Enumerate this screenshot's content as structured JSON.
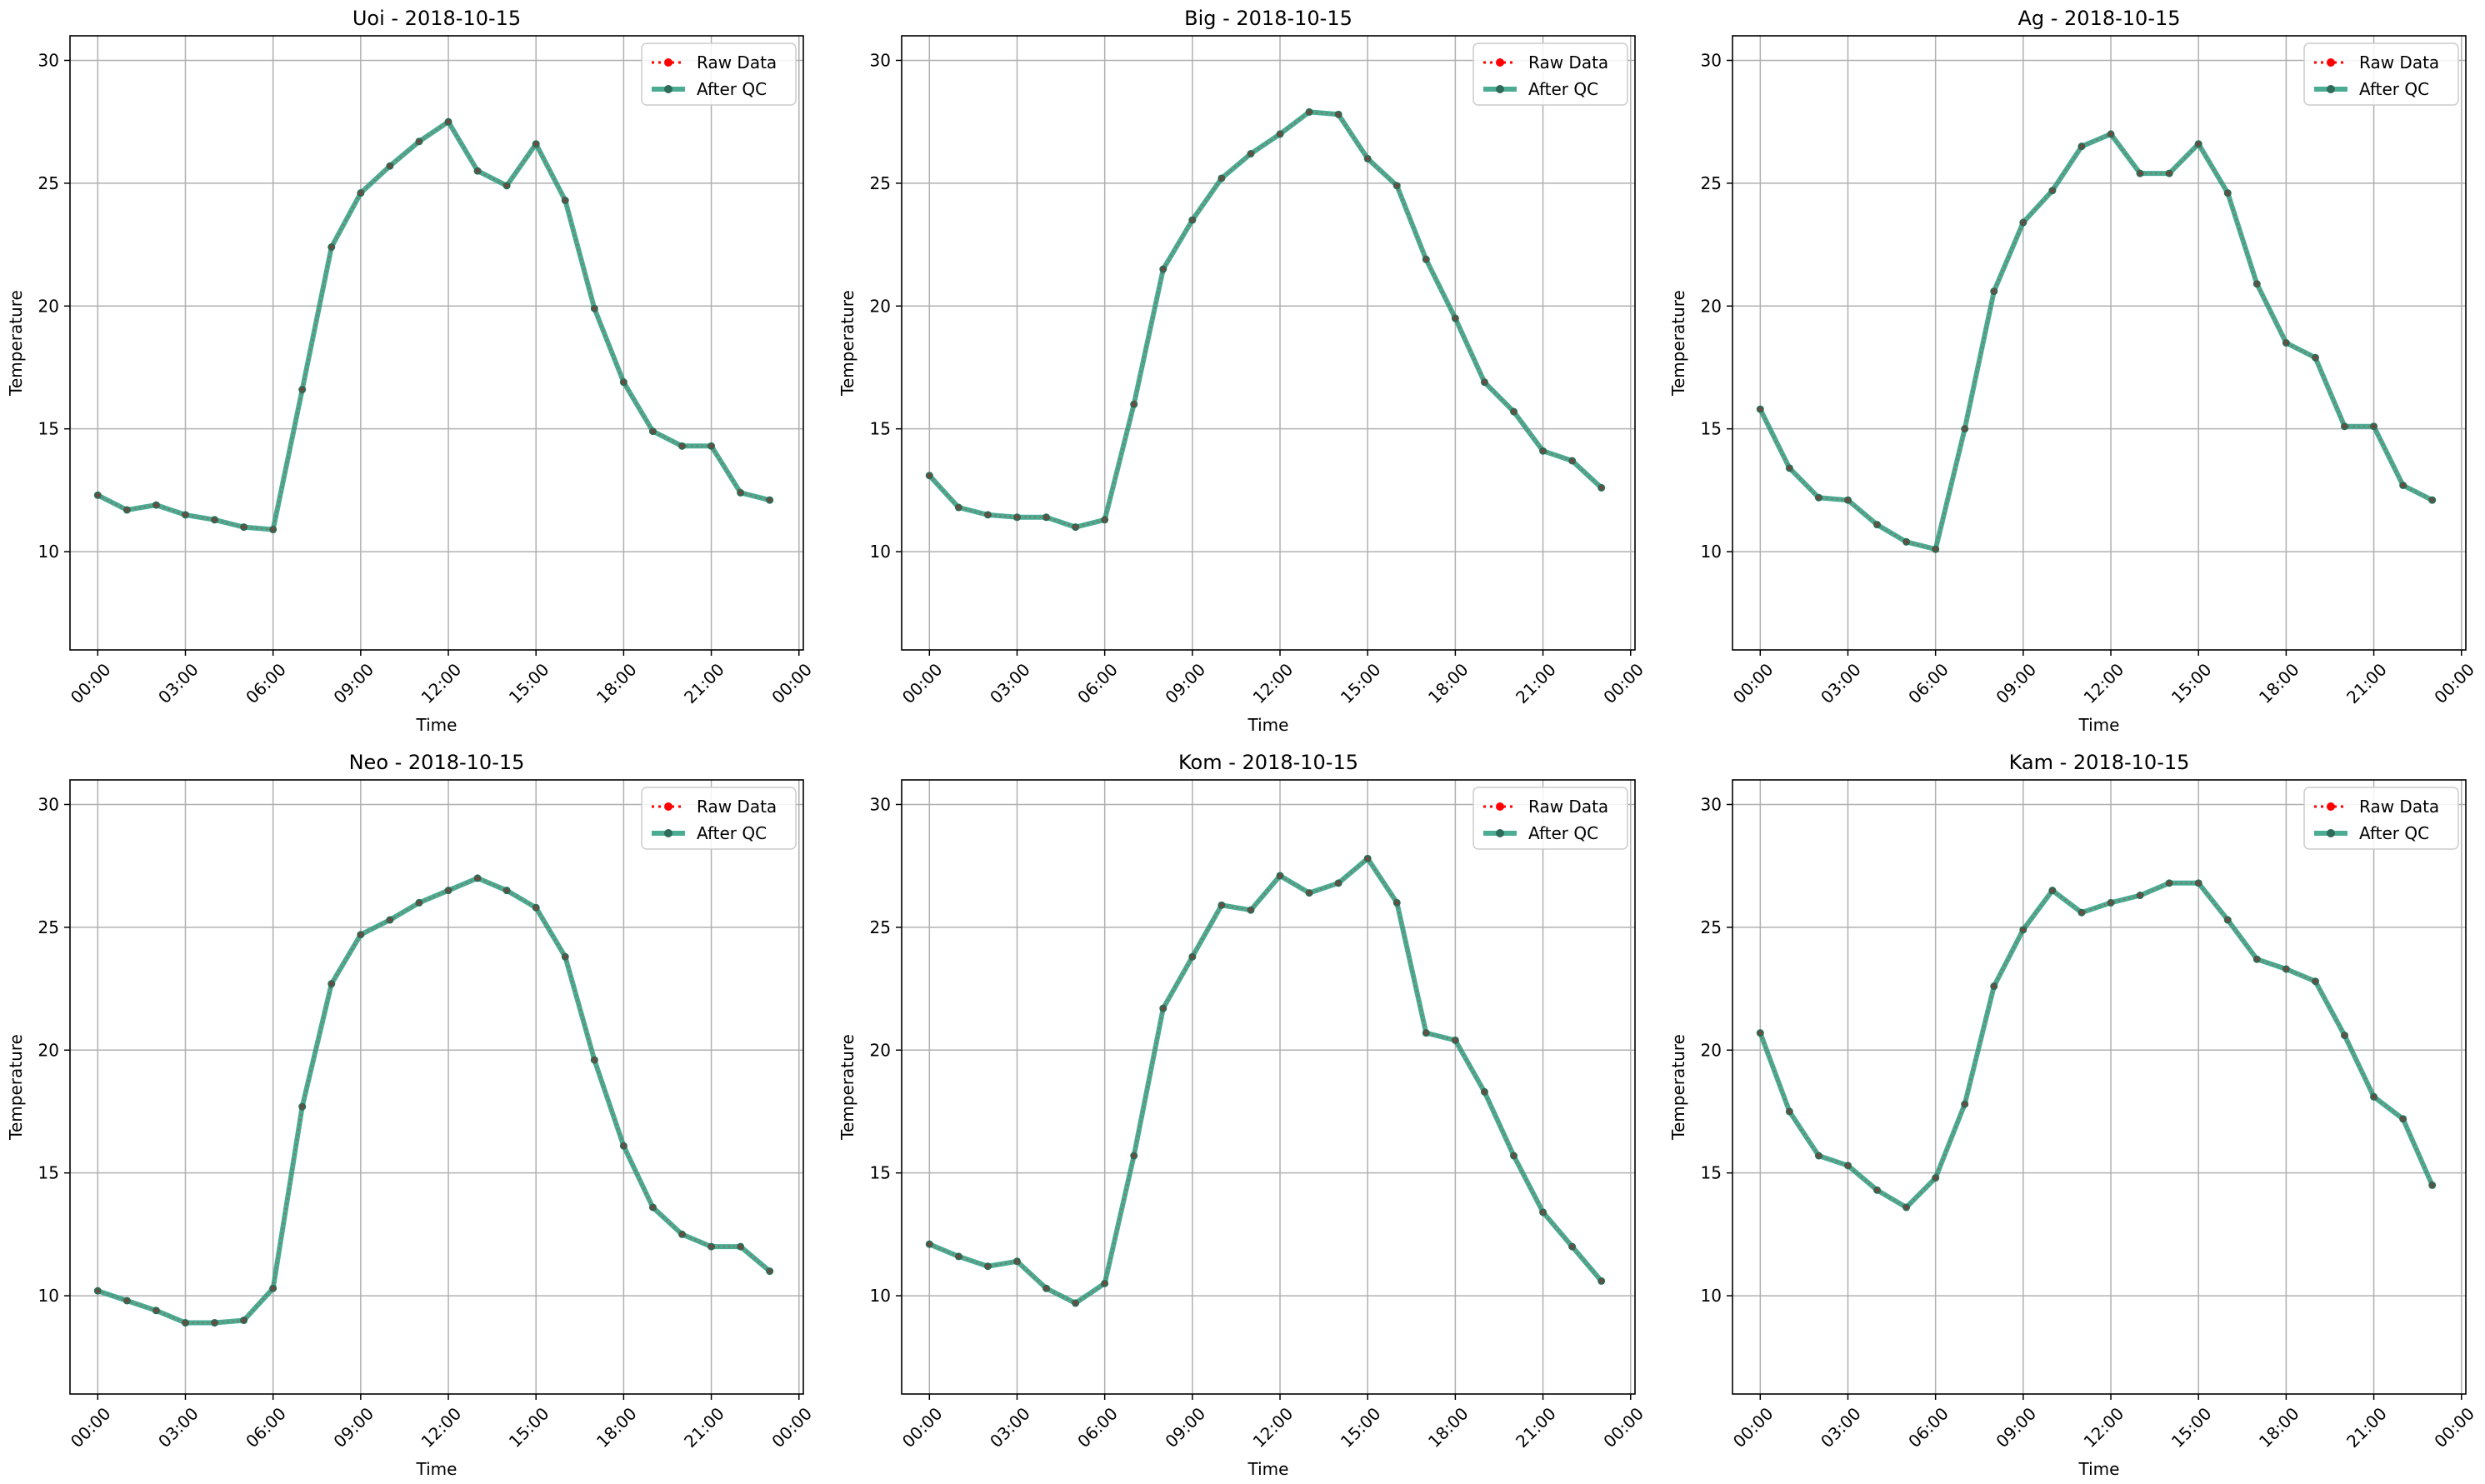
{
  "figure": {
    "colors": {
      "raw": "#ff0000",
      "qc": "#2a9d80",
      "qc_marker": "#2e6b58",
      "grid": "#b0b0b0",
      "axis": "#000000"
    },
    "legend_position": "upper-right",
    "grid": true
  },
  "chart_data": [
    {
      "type": "line",
      "title": "Uoi - 2018-10-15",
      "xlabel": "Time",
      "ylabel": "Temperature",
      "xlim": [
        -0.95,
        24.15
      ],
      "ylim": [
        6.0,
        31.0
      ],
      "xtick_labels": [
        "00:00",
        "03:00",
        "06:00",
        "09:00",
        "12:00",
        "15:00",
        "18:00",
        "21:00",
        "00:00"
      ],
      "ytick_labels": [
        "10",
        "15",
        "20",
        "25",
        "30"
      ],
      "x_hours": [
        0,
        1,
        2,
        3,
        4,
        5,
        6,
        7,
        8,
        9,
        10,
        11,
        12,
        13,
        14,
        15,
        16,
        17,
        18,
        19,
        20,
        21,
        22,
        23
      ],
      "series": [
        {
          "name": "Raw Data",
          "values": [
            12.3,
            11.7,
            11.9,
            11.5,
            11.3,
            11.0,
            10.9,
            16.6,
            22.4,
            24.6,
            25.7,
            26.7,
            27.5,
            25.5,
            24.9,
            26.6,
            24.3,
            19.9,
            16.9,
            14.9,
            14.3,
            14.3,
            12.4,
            12.1
          ]
        },
        {
          "name": "After QC",
          "values": [
            12.3,
            11.7,
            11.9,
            11.5,
            11.3,
            11.0,
            10.9,
            16.6,
            22.4,
            24.6,
            25.7,
            26.7,
            27.5,
            25.5,
            24.9,
            26.6,
            24.3,
            19.9,
            16.9,
            14.9,
            14.3,
            14.3,
            12.4,
            12.1
          ]
        }
      ]
    },
    {
      "type": "line",
      "title": "Big - 2018-10-15",
      "xlabel": "Time",
      "ylabel": "Temperature",
      "xlim": [
        -0.95,
        24.15
      ],
      "ylim": [
        6.0,
        31.0
      ],
      "xtick_labels": [
        "00:00",
        "03:00",
        "06:00",
        "09:00",
        "12:00",
        "15:00",
        "18:00",
        "21:00",
        "00:00"
      ],
      "ytick_labels": [
        "10",
        "15",
        "20",
        "25",
        "30"
      ],
      "x_hours": [
        0,
        1,
        2,
        3,
        4,
        5,
        6,
        7,
        8,
        9,
        10,
        11,
        12,
        13,
        14,
        15,
        16,
        17,
        18,
        19,
        20,
        21,
        22,
        23
      ],
      "series": [
        {
          "name": "Raw Data",
          "values": [
            13.1,
            11.8,
            11.5,
            11.4,
            11.4,
            11.0,
            11.3,
            16.0,
            21.5,
            23.5,
            25.2,
            26.2,
            27.0,
            27.9,
            27.8,
            26.0,
            24.9,
            21.9,
            19.5,
            16.9,
            15.7,
            14.1,
            13.7,
            12.6
          ]
        },
        {
          "name": "After QC",
          "values": [
            13.1,
            11.8,
            11.5,
            11.4,
            11.4,
            11.0,
            11.3,
            16.0,
            21.5,
            23.5,
            25.2,
            26.2,
            27.0,
            27.9,
            27.8,
            26.0,
            24.9,
            21.9,
            19.5,
            16.9,
            15.7,
            14.1,
            13.7,
            12.6
          ]
        }
      ]
    },
    {
      "type": "line",
      "title": "Ag - 2018-10-15",
      "xlabel": "Time",
      "ylabel": "Temperature",
      "xlim": [
        -0.95,
        24.15
      ],
      "ylim": [
        6.0,
        31.0
      ],
      "xtick_labels": [
        "00:00",
        "03:00",
        "06:00",
        "09:00",
        "12:00",
        "15:00",
        "18:00",
        "21:00",
        "00:00"
      ],
      "ytick_labels": [
        "10",
        "15",
        "20",
        "25",
        "30"
      ],
      "x_hours": [
        0,
        1,
        2,
        3,
        4,
        5,
        6,
        7,
        8,
        9,
        10,
        11,
        12,
        13,
        14,
        15,
        16,
        17,
        18,
        19,
        20,
        21,
        22,
        23
      ],
      "series": [
        {
          "name": "Raw Data",
          "values": [
            15.8,
            13.4,
            12.2,
            12.1,
            11.1,
            10.4,
            10.1,
            15.0,
            20.6,
            23.4,
            24.7,
            26.5,
            27.0,
            25.4,
            25.4,
            26.6,
            24.6,
            20.9,
            18.5,
            17.9,
            15.1,
            15.1,
            12.7,
            12.1
          ]
        },
        {
          "name": "After QC",
          "values": [
            15.8,
            13.4,
            12.2,
            12.1,
            11.1,
            10.4,
            10.1,
            15.0,
            20.6,
            23.4,
            24.7,
            26.5,
            27.0,
            25.4,
            25.4,
            26.6,
            24.6,
            20.9,
            18.5,
            17.9,
            15.1,
            15.1,
            12.7,
            12.1
          ]
        }
      ]
    },
    {
      "type": "line",
      "title": "Neo - 2018-10-15",
      "xlabel": "Time",
      "ylabel": "Temperature",
      "xlim": [
        -0.95,
        24.15
      ],
      "ylim": [
        6.0,
        31.0
      ],
      "xtick_labels": [
        "00:00",
        "03:00",
        "06:00",
        "09:00",
        "12:00",
        "15:00",
        "18:00",
        "21:00",
        "00:00"
      ],
      "ytick_labels": [
        "10",
        "15",
        "20",
        "25",
        "30"
      ],
      "x_hours": [
        0,
        1,
        2,
        3,
        4,
        5,
        6,
        7,
        8,
        9,
        10,
        11,
        12,
        13,
        14,
        15,
        16,
        17,
        18,
        19,
        20,
        21,
        22,
        23
      ],
      "series": [
        {
          "name": "Raw Data",
          "values": [
            10.2,
            9.8,
            9.4,
            8.9,
            8.9,
            9.0,
            10.3,
            17.7,
            22.7,
            24.7,
            25.3,
            26.0,
            26.5,
            27.0,
            26.5,
            25.8,
            23.8,
            19.6,
            16.1,
            13.6,
            12.5,
            12.0,
            12.0,
            11.0
          ]
        },
        {
          "name": "After QC",
          "values": [
            10.2,
            9.8,
            9.4,
            8.9,
            8.9,
            9.0,
            10.3,
            17.7,
            22.7,
            24.7,
            25.3,
            26.0,
            26.5,
            27.0,
            26.5,
            25.8,
            23.8,
            19.6,
            16.1,
            13.6,
            12.5,
            12.0,
            12.0,
            11.0
          ]
        }
      ]
    },
    {
      "type": "line",
      "title": "Kom - 2018-10-15",
      "xlabel": "Time",
      "ylabel": "Temperature",
      "xlim": [
        -0.95,
        24.15
      ],
      "ylim": [
        6.0,
        31.0
      ],
      "xtick_labels": [
        "00:00",
        "03:00",
        "06:00",
        "09:00",
        "12:00",
        "15:00",
        "18:00",
        "21:00",
        "00:00"
      ],
      "ytick_labels": [
        "10",
        "15",
        "20",
        "25",
        "30"
      ],
      "x_hours": [
        0,
        1,
        2,
        3,
        4,
        5,
        6,
        7,
        8,
        9,
        10,
        11,
        12,
        13,
        14,
        15,
        16,
        17,
        18,
        19,
        20,
        21,
        22,
        23
      ],
      "series": [
        {
          "name": "Raw Data",
          "values": [
            12.1,
            11.6,
            11.2,
            11.4,
            10.3,
            9.7,
            10.5,
            15.7,
            21.7,
            23.8,
            25.9,
            25.7,
            27.1,
            26.4,
            26.8,
            27.8,
            26.0,
            20.7,
            20.4,
            18.3,
            15.7,
            13.4,
            12.0,
            10.6
          ]
        },
        {
          "name": "After QC",
          "values": [
            12.1,
            11.6,
            11.2,
            11.4,
            10.3,
            9.7,
            10.5,
            15.7,
            21.7,
            23.8,
            25.9,
            25.7,
            27.1,
            26.4,
            26.8,
            27.8,
            26.0,
            20.7,
            20.4,
            18.3,
            15.7,
            13.4,
            12.0,
            10.6
          ]
        }
      ]
    },
    {
      "type": "line",
      "title": "Kam - 2018-10-15",
      "xlabel": "Time",
      "ylabel": "Temperature",
      "xlim": [
        -0.95,
        24.15
      ],
      "ylim": [
        6.0,
        31.0
      ],
      "xtick_labels": [
        "00:00",
        "03:00",
        "06:00",
        "09:00",
        "12:00",
        "15:00",
        "18:00",
        "21:00",
        "00:00"
      ],
      "ytick_labels": [
        "10",
        "15",
        "20",
        "25",
        "30"
      ],
      "x_hours": [
        0,
        1,
        2,
        3,
        4,
        5,
        6,
        7,
        8,
        9,
        10,
        11,
        12,
        13,
        14,
        15,
        16,
        17,
        18,
        19,
        20,
        21,
        22,
        23
      ],
      "series": [
        {
          "name": "Raw Data",
          "values": [
            20.7,
            17.5,
            15.7,
            15.3,
            14.3,
            13.6,
            14.8,
            17.8,
            22.6,
            24.9,
            26.5,
            25.6,
            26.0,
            26.3,
            26.8,
            26.8,
            25.3,
            23.7,
            23.3,
            22.8,
            20.6,
            18.1,
            17.2,
            14.5
          ]
        },
        {
          "name": "After QC",
          "values": [
            20.7,
            17.5,
            15.7,
            15.3,
            14.3,
            13.6,
            14.8,
            17.8,
            22.6,
            24.9,
            26.5,
            25.6,
            26.0,
            26.3,
            26.8,
            26.8,
            25.3,
            23.7,
            23.3,
            22.8,
            20.6,
            18.1,
            17.2,
            14.5
          ]
        }
      ]
    }
  ]
}
